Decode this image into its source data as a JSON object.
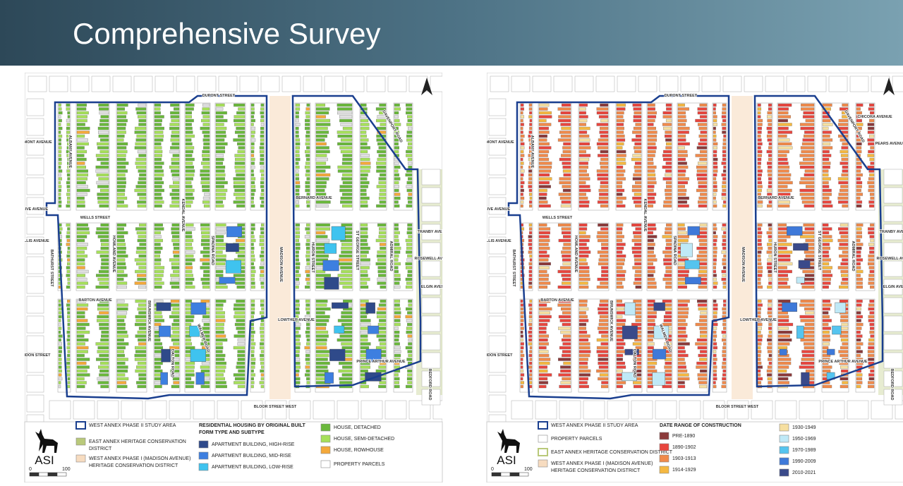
{
  "header": {
    "title": "Comprehensive Survey"
  },
  "maps": [
    {
      "streets": [
        "DUPONT STREET",
        "VERMONT AVENUE",
        "ALBANY AVENUE",
        "OLIVE AVENUE",
        "WELLS STREET",
        "FOLLIS AVENUE",
        "BATHURST STREET",
        "HOWLAND AVENUE",
        "BARTON AVENUE",
        "BRUNSWICK AVENUE",
        "KENDAL AVENUE",
        "SPADINA ROAD",
        "MADISON AVENUE",
        "HURON STREET",
        "ST GEORGE STREET",
        "ADMIRAL ROAD",
        "BERNARD AVENUE",
        "LOWTHER AVENUE",
        "PRINCE ARTHUR AVENUE",
        "BLOOR STREET WEST",
        "LONDON STREET",
        "WALMER ROAD",
        "DALTON ROAD",
        "BEDFORD ROAD",
        "DAVENPORT ROAD",
        "TRANBY AVENUE",
        "ROSEWELL AVENUE",
        "ELGIN AVENUE"
      ],
      "logo": "ASI",
      "scale": [
        0,
        100
      ],
      "legend": {
        "boundaries": [
          {
            "label": [
              "WEST ANNEX PHASE II STUDY AREA"
            ],
            "color": "#1a3f8f"
          },
          {
            "label": [
              "EAST ANNEX HERITAGE CONSERVATION",
              "DISTRICT"
            ],
            "color": "#b9c97a"
          },
          {
            "label": [
              "WEST ANNEX PHASE I (MADISON AVENUE)",
              "HERITAGE CONSERVATION DISTRICT"
            ],
            "color": "#f7dcc0"
          }
        ],
        "heading": [
          "RESIDENTIAL HOUSING BY ORIGINAL BUILT",
          "FORM TYPE AND SUBTYPE"
        ],
        "items": [
          {
            "label": [
              "APARTMENT BUILDING, HIGH-RISE"
            ],
            "color": "#2f4a8a"
          },
          {
            "label": [
              "APARTMENT BUILDING, MID-RISE"
            ],
            "color": "#3d7fe0"
          },
          {
            "label": [
              "APARTMENT BUILDING, LOW-RISE"
            ],
            "color": "#3fc3ef"
          },
          {
            "label": [
              "HOUSE, DETACHED"
            ],
            "color": "#6ab83b"
          },
          {
            "label": [
              "HOUSE, SEMI-DETACHED"
            ],
            "color": "#a6e05a"
          },
          {
            "label": [
              "HOUSE, ROWHOUSE"
            ],
            "color": "#f4a93a"
          },
          {
            "label": [
              "PROPERTY PARCELS"
            ],
            "color": "#ffffff"
          }
        ]
      }
    },
    {
      "streets": [
        "DUPONT STREET",
        "VERMONT AVENUE",
        "ALBANY AVENUE",
        "OLIVE AVENUE",
        "WELLS STREET",
        "FOLLIS AVENUE",
        "BATHURST STREET",
        "HOWLAND AVENUE",
        "BARTON AVENUE",
        "BRUNSWICK AVENUE",
        "KENDAL AVENUE",
        "SPADINA ROAD",
        "MADISON AVENUE",
        "HURON STREET",
        "ST GEORGE STREET",
        "ADMIRAL ROAD",
        "BERNARD AVENUE",
        "LOWTHER AVENUE",
        "PRINCE ARTHUR AVENUE",
        "BLOOR STREET WEST",
        "LONDON STREET",
        "WALMER ROAD",
        "DALTON ROAD",
        "BEDFORD ROAD",
        "DAVENPORT ROAD",
        "TRANBY AVENUE",
        "ROSEWELL AVENUE",
        "ELGIN AVENUE",
        "CHICORA AVENUE",
        "PEARS AVENUE"
      ],
      "logo": "ASI",
      "scale": [
        0,
        100
      ],
      "legend": {
        "boundaries": [
          {
            "label": [
              "WEST ANNEX PHASE II STUDY AREA"
            ],
            "color": "#1a3f8f"
          },
          {
            "label": [
              "PROPERTY PARCELS"
            ],
            "color": "#ffffff"
          },
          {
            "label": [
              "EAST ANNEX HERITAGE CONSERVATION DISTRICT"
            ],
            "color": "#b9c97a"
          },
          {
            "label": [
              "WEST ANNEX PHASE I (MADISON AVENUE)",
              "HERITAGE CONSERVATION DISTRICT"
            ],
            "color": "#f7dcc0"
          }
        ],
        "heading": [
          "DATE RANGE OF CONSTRUCTION"
        ],
        "items": [
          {
            "label": [
              "PRE-1890"
            ],
            "color": "#8b3a3a"
          },
          {
            "label": [
              "1890-1902"
            ],
            "color": "#e8463e"
          },
          {
            "label": [
              "1903-1913"
            ],
            "color": "#f08a4b"
          },
          {
            "label": [
              "1914-1929"
            ],
            "color": "#f5b841"
          },
          {
            "label": [
              "1930-1949"
            ],
            "color": "#f6dfa0"
          },
          {
            "label": [
              "1950-1969"
            ],
            "color": "#bfe9f7"
          },
          {
            "label": [
              "1970-1989"
            ],
            "color": "#55c4ef"
          },
          {
            "label": [
              "1990-2009"
            ],
            "color": "#3e79d9"
          },
          {
            "label": [
              "2010-2021"
            ],
            "color": "#3a4a8a"
          }
        ]
      }
    }
  ]
}
